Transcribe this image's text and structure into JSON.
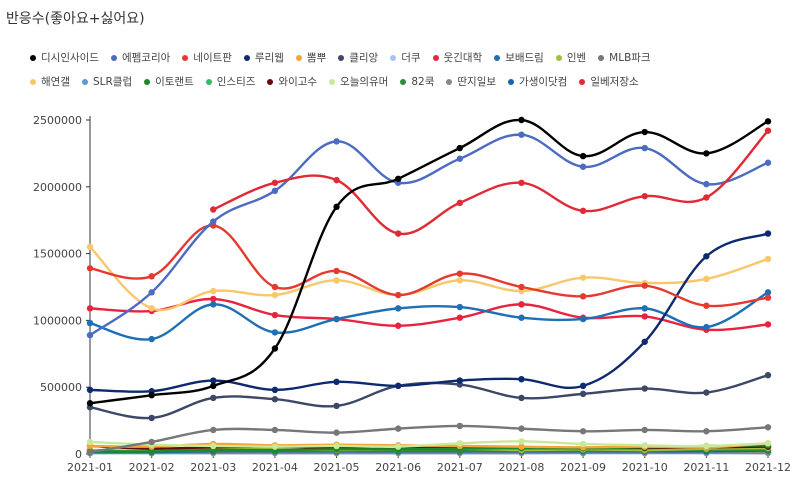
{
  "chart_data": {
    "type": "line",
    "title": "반응수(좋아요+싫어요)",
    "categories": [
      "2021-01",
      "2021-02",
      "2021-03",
      "2021-04",
      "2021-05",
      "2021-06",
      "2021-07",
      "2021-08",
      "2021-09",
      "2021-10",
      "2021-11",
      "2021-12"
    ],
    "ylim": [
      0,
      2500000
    ],
    "yticks": [
      0,
      500000,
      1000000,
      1500000,
      2000000,
      2500000
    ],
    "grid": false,
    "legend": "top",
    "series": [
      {
        "name": "디시인사이드",
        "color": "#000000",
        "values": [
          380000,
          440000,
          510000,
          790000,
          1850000,
          2060000,
          2290000,
          2500000,
          2230000,
          2410000,
          2250000,
          2490000
        ]
      },
      {
        "name": "에펨코리아",
        "color": "#4b6cc1",
        "values": [
          890000,
          1210000,
          1740000,
          1970000,
          2340000,
          2030000,
          2210000,
          2390000,
          2150000,
          2290000,
          2020000,
          2180000
        ]
      },
      {
        "name": "네이트판",
        "color": "#e53a2f",
        "values": [
          1390000,
          1330000,
          1710000,
          1250000,
          1370000,
          1190000,
          1350000,
          1250000,
          1180000,
          1260000,
          1110000,
          1170000
        ]
      },
      {
        "name": "루리웹",
        "color": "#0d2a6e",
        "values": [
          480000,
          470000,
          550000,
          480000,
          540000,
          510000,
          550000,
          560000,
          510000,
          840000,
          1480000,
          1650000
        ]
      },
      {
        "name": "뽐뿌",
        "color": "#f4a53a",
        "values": [
          60000,
          55000,
          75000,
          65000,
          70000,
          65000,
          60000,
          55000,
          50000,
          55000,
          50000,
          80000
        ]
      },
      {
        "name": "클리앙",
        "color": "#3d4766",
        "values": [
          350000,
          270000,
          420000,
          410000,
          360000,
          510000,
          520000,
          420000,
          450000,
          490000,
          460000,
          590000
        ]
      },
      {
        "name": "더쿠",
        "color": "#a8c3f0",
        "values": [
          5000,
          5000,
          6000,
          6000,
          6000,
          6000,
          6000,
          6000,
          5000,
          5000,
          5000,
          6000
        ]
      },
      {
        "name": "웃긴대학",
        "color": "#e8233f",
        "values": [
          1090000,
          1070000,
          1160000,
          1040000,
          1010000,
          960000,
          1020000,
          1120000,
          1020000,
          1030000,
          930000,
          970000
        ]
      },
      {
        "name": "보배드림",
        "color": "#1f6fb4",
        "values": [
          980000,
          860000,
          1120000,
          910000,
          1010000,
          1090000,
          1100000,
          1020000,
          1010000,
          1090000,
          950000,
          1210000
        ]
      },
      {
        "name": "인벤",
        "color": "#9cc23b",
        "values": [
          30000,
          25000,
          40000,
          35000,
          30000,
          35000,
          40000,
          30000,
          35000,
          30000,
          40000,
          45000
        ]
      },
      {
        "name": "MLB파크",
        "color": "#777777",
        "values": [
          15000,
          90000,
          180000,
          180000,
          160000,
          190000,
          210000,
          190000,
          170000,
          180000,
          170000,
          200000
        ]
      },
      {
        "name": "해연갤",
        "color": "#f7c76a",
        "values": [
          1550000,
          1090000,
          1220000,
          1190000,
          1300000,
          1190000,
          1300000,
          1220000,
          1320000,
          1280000,
          1310000,
          1460000
        ]
      },
      {
        "name": "SLR클럽",
        "color": "#5a9ad6",
        "values": [
          10000,
          10000,
          12000,
          12000,
          12000,
          12000,
          12000,
          12000,
          12000,
          12000,
          12000,
          12000
        ]
      },
      {
        "name": "이토랜트",
        "color": "#1a8a2a",
        "values": [
          20000,
          20000,
          30000,
          30000,
          35000,
          35000,
          40000,
          45000,
          45000,
          50000,
          60000,
          65000
        ]
      },
      {
        "name": "인스티즈",
        "color": "#33bb66",
        "values": [
          8000,
          8000,
          9000,
          9000,
          9000,
          9000,
          9000,
          9000,
          9000,
          9000,
          9000,
          9000
        ]
      },
      {
        "name": "와이고수",
        "color": "#6b0a0a",
        "values": [
          60000,
          40000,
          50000,
          55000,
          45000,
          50000,
          50000,
          45000,
          45000,
          45000,
          50000,
          55000
        ]
      },
      {
        "name": "오늘의유머",
        "color": "#c9e89a",
        "values": [
          90000,
          70000,
          60000,
          55000,
          60000,
          55000,
          80000,
          95000,
          75000,
          65000,
          60000,
          80000
        ]
      },
      {
        "name": "82쿡",
        "color": "#2e8b3a",
        "values": [
          20000,
          20000,
          25000,
          25000,
          25000,
          25000,
          25000,
          25000,
          25000,
          25000,
          30000,
          30000
        ]
      },
      {
        "name": "딴지일보",
        "color": "#888888",
        "values": [
          10000,
          10000,
          12000,
          12000,
          12000,
          12000,
          12000,
          12000,
          12000,
          12000,
          12000,
          12000
        ]
      },
      {
        "name": "가생이닷컴",
        "color": "#1565a8",
        "values": [
          15000,
          15000,
          20000,
          20000,
          20000,
          20000,
          20000,
          20000,
          20000,
          20000,
          20000,
          25000
        ]
      },
      {
        "name": "일베저장소",
        "color": "#e02a35",
        "values": [
          null,
          null,
          1830000,
          2030000,
          2050000,
          1650000,
          1880000,
          2030000,
          1820000,
          1930000,
          1920000,
          2420000
        ]
      }
    ]
  }
}
